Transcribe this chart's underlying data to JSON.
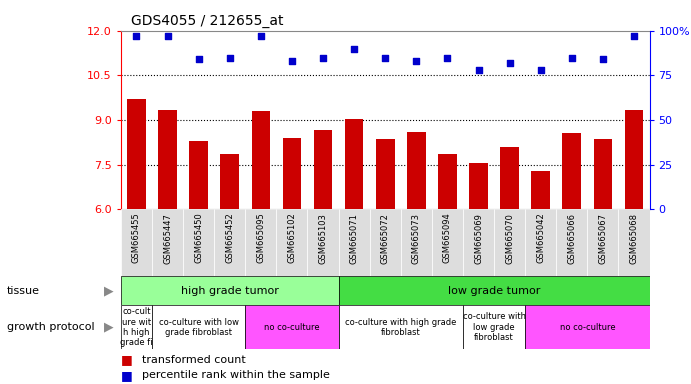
{
  "title": "GDS4055 / 212655_at",
  "samples": [
    "GSM665455",
    "GSM665447",
    "GSM665450",
    "GSM665452",
    "GSM665095",
    "GSM665102",
    "GSM665103",
    "GSM665071",
    "GSM665072",
    "GSM665073",
    "GSM665094",
    "GSM665069",
    "GSM665070",
    "GSM665042",
    "GSM665066",
    "GSM665067",
    "GSM665068"
  ],
  "red_values": [
    9.7,
    9.35,
    8.3,
    7.85,
    9.3,
    8.4,
    8.65,
    9.05,
    8.35,
    8.6,
    7.85,
    7.55,
    8.1,
    7.3,
    8.55,
    8.35,
    9.35
  ],
  "blue_values": [
    97,
    97,
    84,
    85,
    97,
    83,
    85,
    90,
    85,
    83,
    85,
    78,
    82,
    78,
    85,
    84,
    97
  ],
  "ylim_left": [
    6,
    12
  ],
  "ylim_right": [
    0,
    100
  ],
  "yticks_left": [
    6,
    7.5,
    9,
    10.5,
    12
  ],
  "yticks_right": [
    0,
    25,
    50,
    75,
    100
  ],
  "bar_color": "#cc0000",
  "dot_color": "#0000cc",
  "tissue_row": [
    {
      "label": "high grade tumor",
      "start": 0,
      "end": 7,
      "color": "#99ff99"
    },
    {
      "label": "low grade tumor",
      "start": 7,
      "end": 17,
      "color": "#44dd44"
    }
  ],
  "protocol_row": [
    {
      "label": "co-cult\nure wit\nh high\ngrade fi",
      "start": 0,
      "end": 1,
      "color": "#ffffff"
    },
    {
      "label": "co-culture with low\ngrade fibroblast",
      "start": 1,
      "end": 4,
      "color": "#ffffff"
    },
    {
      "label": "no co-culture",
      "start": 4,
      "end": 7,
      "color": "#ff55ff"
    },
    {
      "label": "co-culture with high grade\nfibroblast",
      "start": 7,
      "end": 11,
      "color": "#ffffff"
    },
    {
      "label": "co-culture with\nlow grade\nfibroblast",
      "start": 11,
      "end": 13,
      "color": "#ffffff"
    },
    {
      "label": "no co-culture",
      "start": 13,
      "end": 17,
      "color": "#ff55ff"
    }
  ],
  "tissue_label": "tissue",
  "protocol_label": "growth protocol",
  "legend_red": "transformed count",
  "legend_blue": "percentile rank within the sample",
  "background_color": "#ffffff",
  "dotted_lines": [
    7.5,
    9.0,
    10.5
  ],
  "xtick_bg": "#dddddd",
  "spine_color": "#888888"
}
